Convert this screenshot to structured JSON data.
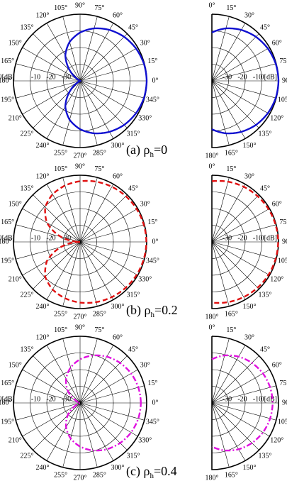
{
  "chart_data": {
    "type": "polar",
    "panels": [
      {
        "caption": {
          "prefix": "(a)  ",
          "symbol": "ρ",
          "subscript": "h",
          "suffix": "=0"
        },
        "color": "#1010d0",
        "line_style": "solid",
        "r_ticks": [
          "-10",
          "-20",
          "-30"
        ],
        "r_unit_label": "0[dB]",
        "full": {
          "angle_labels": [
            "0°",
            "15°",
            "30°",
            "45°",
            "60°",
            "75°",
            "90°",
            "105°",
            "120°",
            "135°",
            "150°",
            "165°",
            "180°",
            "195°",
            "210°",
            "225°",
            "240°",
            "255°",
            "270°",
            "285°",
            "300°",
            "315°",
            "330°",
            "345°"
          ],
          "pattern_db": [
            0,
            -0.3,
            -1.2,
            -2.6,
            -4.7,
            -7.4,
            -11,
            -15.8,
            -22.3,
            -31.5,
            -40,
            -40,
            -40,
            -40,
            -40,
            -31.5,
            -22.3,
            -15.8,
            -11,
            -7.4,
            -4.7,
            -2.6,
            -1.2,
            -0.3
          ]
        },
        "half": {
          "angle_labels": [
            "0°",
            "15°",
            "30°",
            "45°",
            "60°",
            "75°",
            "90°",
            "105°",
            "120°",
            "135°",
            "150°",
            "165°",
            "180°"
          ],
          "pattern_db": [
            -11,
            -7.4,
            -4.7,
            -2.6,
            -1.2,
            -0.3,
            0,
            -0.3,
            -1.2,
            -2.6,
            -4.7,
            -7.4,
            -11
          ]
        }
      },
      {
        "caption": {
          "prefix": "(b)  ",
          "symbol": "ρ",
          "subscript": "h",
          "suffix": "=0.2"
        },
        "color": "#e01010",
        "line_style": "dashed",
        "r_ticks": [
          "-10",
          "-20",
          "-30"
        ],
        "r_unit_label": "0[dB]",
        "full": {
          "angle_labels": [
            "0°",
            "15°",
            "30°",
            "45°",
            "60°",
            "75°",
            "90°",
            "105°",
            "120°",
            "135°",
            "150°",
            "165°",
            "180°",
            "195°",
            "210°",
            "225°",
            "240°",
            "255°",
            "270°",
            "285°",
            "300°",
            "315°",
            "330°",
            "345°"
          ],
          "pattern_db": [
            -0.2,
            -0.4,
            -0.7,
            -1.2,
            -1.8,
            -2.6,
            -3.6,
            -5,
            -7,
            -10.4,
            -17,
            -28,
            -40,
            -28,
            -17,
            -10.4,
            -7,
            -5,
            -3.6,
            -2.6,
            -1.8,
            -1.2,
            -0.7,
            -0.4
          ]
        },
        "half": {
          "angle_labels": [
            "0°",
            "15°",
            "30°",
            "45°",
            "60°",
            "75°",
            "90°",
            "105°",
            "120°",
            "135°",
            "150°",
            "165°",
            "180°"
          ],
          "pattern_db": [
            -3.6,
            -2.6,
            -1.8,
            -1.2,
            -0.7,
            -0.4,
            -0.2,
            -0.4,
            -0.7,
            -1.2,
            -1.8,
            -2.6,
            -3.6
          ]
        }
      },
      {
        "caption": {
          "prefix": "(c)  ",
          "symbol": "ρ",
          "subscript": "h",
          "suffix": "=0.4"
        },
        "color": "#e010e0",
        "line_style": "dashdot",
        "r_ticks": [
          "-10",
          "-20",
          "-30"
        ],
        "r_unit_label": "0[dB]",
        "full": {
          "angle_labels": [
            "0°",
            "15°",
            "30°",
            "45°",
            "60°",
            "75°",
            "90°",
            "105°",
            "120°",
            "135°",
            "150°",
            "165°",
            "180°",
            "195°",
            "210°",
            "225°",
            "240°",
            "255°",
            "270°",
            "285°",
            "300°",
            "315°",
            "330°",
            "345°"
          ],
          "pattern_db": [
            -3.5,
            -3.8,
            -4.6,
            -6,
            -7.9,
            -10.5,
            -13.8,
            -18,
            -23.2,
            -29.5,
            -37,
            -40,
            -40,
            -40,
            -37,
            -29.5,
            -23.2,
            -18,
            -13.8,
            -10.5,
            -7.9,
            -6,
            -4.6,
            -3.8
          ]
        },
        "half": {
          "angle_labels": [
            "0°",
            "15°",
            "30°",
            "45°",
            "60°",
            "75°",
            "90°",
            "105°",
            "120°",
            "135°",
            "150°",
            "165°",
            "180°"
          ],
          "pattern_db": [
            -13.8,
            -10.5,
            -7.9,
            -6,
            -4.6,
            -3.8,
            -3.5,
            -3.8,
            -4.6,
            -6,
            -7.9,
            -10.5,
            -13.8
          ]
        }
      }
    ]
  }
}
